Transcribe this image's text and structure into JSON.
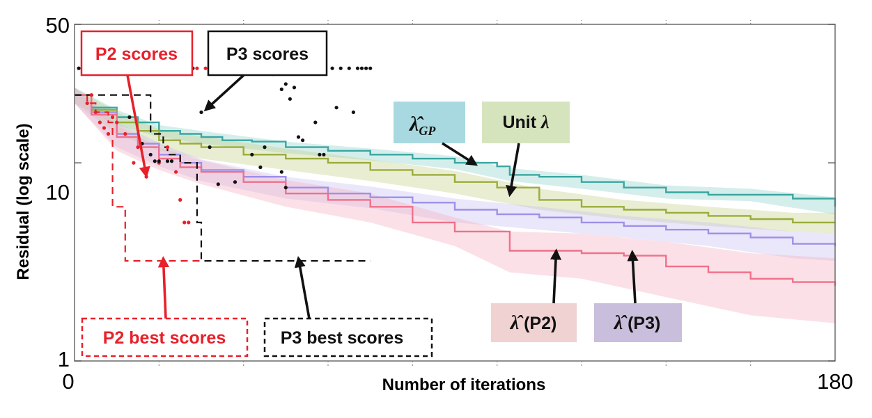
{
  "chart_data": {
    "type": "line",
    "ylabel": "Residual (log scale)",
    "xlabel": "Number of iterations",
    "xlim": [
      0,
      180
    ],
    "ylim": [
      1,
      50
    ],
    "yscale": "log",
    "x_tick_labels": [
      "0",
      "180"
    ],
    "y_tick_labels": [
      "50",
      "10",
      "1"
    ],
    "y_tick_values": [
      50,
      10,
      1
    ],
    "grid": false,
    "series": [
      {
        "name": "λ̂_GP",
        "color": "#3aa6a0",
        "band_color": "#8fd3cd",
        "points": [
          [
            0,
            22
          ],
          [
            4,
            19
          ],
          [
            10,
            17
          ],
          [
            15,
            16
          ],
          [
            20,
            14.5
          ],
          [
            25,
            14
          ],
          [
            30,
            13.5
          ],
          [
            35,
            13
          ],
          [
            42,
            12.8
          ],
          [
            50,
            12
          ],
          [
            60,
            11.5
          ],
          [
            70,
            11
          ],
          [
            80,
            10.5
          ],
          [
            90,
            10
          ],
          [
            100,
            9.6
          ],
          [
            103,
            8.7
          ],
          [
            110,
            8.5
          ],
          [
            120,
            8
          ],
          [
            130,
            7.5
          ],
          [
            140,
            7.1
          ],
          [
            150,
            6.9
          ],
          [
            160,
            6.9
          ],
          [
            170,
            6.6
          ],
          [
            180,
            6
          ]
        ],
        "band": [
          [
            0,
            20,
            24
          ],
          [
            10,
            15.5,
            18.5
          ],
          [
            20,
            13.5,
            15.5
          ],
          [
            30,
            12.5,
            14.5
          ],
          [
            50,
            11.2,
            12.8
          ],
          [
            70,
            10.3,
            11.8
          ],
          [
            90,
            9.3,
            10.8
          ],
          [
            103,
            8.1,
            9.4
          ],
          [
            120,
            7.4,
            8.7
          ],
          [
            140,
            6.6,
            7.7
          ],
          [
            160,
            6.4,
            7.4
          ],
          [
            180,
            5.5,
            6.7
          ]
        ]
      },
      {
        "name": "Unit λ",
        "color": "#9aac3a",
        "band_color": "#c5d08a",
        "points": [
          [
            0,
            22
          ],
          [
            4,
            18.5
          ],
          [
            10,
            16
          ],
          [
            15,
            14.5
          ],
          [
            20,
            13
          ],
          [
            25,
            12.5
          ],
          [
            30,
            12
          ],
          [
            40,
            11
          ],
          [
            50,
            10.5
          ],
          [
            60,
            10
          ],
          [
            70,
            9.2
          ],
          [
            80,
            8.7
          ],
          [
            90,
            8
          ],
          [
            100,
            7.5
          ],
          [
            110,
            6.5
          ],
          [
            120,
            6
          ],
          [
            130,
            5.8
          ],
          [
            140,
            5.6
          ],
          [
            150,
            5.4
          ],
          [
            160,
            5.2
          ],
          [
            170,
            5
          ],
          [
            180,
            5
          ]
        ],
        "band": [
          [
            0,
            20,
            24
          ],
          [
            10,
            14,
            18
          ],
          [
            20,
            11.5,
            14.8
          ],
          [
            30,
            10.5,
            13.6
          ],
          [
            50,
            9.2,
            11.8
          ],
          [
            70,
            8.1,
            10.4
          ],
          [
            90,
            7,
            9.1
          ],
          [
            110,
            5.8,
            7.4
          ],
          [
            130,
            5.2,
            6.5
          ],
          [
            150,
            4.8,
            6
          ],
          [
            170,
            4.5,
            5.6
          ],
          [
            180,
            4.4,
            5.6
          ]
        ]
      },
      {
        "name": "λ̂ (P3)",
        "color": "#9f8fe8",
        "band_color": "#c9bff2",
        "points": [
          [
            0,
            22
          ],
          [
            4,
            18
          ],
          [
            10,
            14
          ],
          [
            15,
            12.5
          ],
          [
            20,
            11
          ],
          [
            25,
            10
          ],
          [
            30,
            9.2
          ],
          [
            40,
            8.5
          ],
          [
            50,
            7.5
          ],
          [
            60,
            7
          ],
          [
            70,
            6.7
          ],
          [
            80,
            6.3
          ],
          [
            90,
            5.8
          ],
          [
            100,
            5.5
          ],
          [
            110,
            5.3
          ],
          [
            120,
            5
          ],
          [
            130,
            4.8
          ],
          [
            140,
            4.6
          ],
          [
            150,
            4.4
          ],
          [
            160,
            4.2
          ],
          [
            170,
            3.9
          ],
          [
            180,
            3.8
          ]
        ],
        "band": [
          [
            0,
            20,
            24
          ],
          [
            10,
            12,
            16
          ],
          [
            20,
            9.6,
            12.6
          ],
          [
            30,
            8.1,
            10.4
          ],
          [
            50,
            6.6,
            8.5
          ],
          [
            70,
            5.9,
            7.6
          ],
          [
            90,
            5,
            6.6
          ],
          [
            110,
            4.6,
            6
          ],
          [
            130,
            4.2,
            5.4
          ],
          [
            150,
            3.8,
            5
          ],
          [
            170,
            3.3,
            4.5
          ],
          [
            180,
            3.2,
            4.4
          ]
        ]
      },
      {
        "name": "λ̂ (P2)",
        "color": "#f0708a",
        "band_color": "#f5b0bf",
        "points": [
          [
            0,
            22
          ],
          [
            4,
            17.5
          ],
          [
            10,
            13.5
          ],
          [
            15,
            12
          ],
          [
            20,
            10.5
          ],
          [
            25,
            9.5
          ],
          [
            30,
            9
          ],
          [
            40,
            8
          ],
          [
            50,
            7
          ],
          [
            60,
            6.5
          ],
          [
            70,
            6
          ],
          [
            80,
            5
          ],
          [
            90,
            4.5
          ],
          [
            100,
            4.5
          ],
          [
            103,
            3.6
          ],
          [
            110,
            3.6
          ],
          [
            120,
            3.5
          ],
          [
            130,
            3.4
          ],
          [
            140,
            3
          ],
          [
            150,
            2.8
          ],
          [
            160,
            2.6
          ],
          [
            170,
            2.5
          ],
          [
            180,
            2.4
          ]
        ],
        "band": [
          [
            0,
            20,
            24
          ],
          [
            10,
            11.5,
            15.5
          ],
          [
            20,
            9.2,
            12
          ],
          [
            30,
            7.8,
            10.3
          ],
          [
            50,
            6,
            8.2
          ],
          [
            70,
            5,
            7
          ],
          [
            90,
            3.8,
            5.3
          ],
          [
            103,
            2.8,
            4.5
          ],
          [
            120,
            2.6,
            4.4
          ],
          [
            140,
            2.1,
            4
          ],
          [
            160,
            1.7,
            3.5
          ],
          [
            180,
            1.55,
            3.3
          ]
        ]
      }
    ],
    "scatter": [
      {
        "name": "P2 scores",
        "color": "#e8202a",
        "points": [
          [
            1,
            30
          ],
          [
            2,
            30
          ],
          [
            3,
            30
          ],
          [
            4,
            30
          ],
          [
            5,
            30
          ],
          [
            6,
            30
          ],
          [
            7,
            30
          ],
          [
            8,
            30
          ],
          [
            3,
            20
          ],
          [
            4,
            22
          ],
          [
            5,
            18
          ],
          [
            6,
            16
          ],
          [
            7,
            15
          ],
          [
            8,
            14
          ],
          [
            9,
            17
          ],
          [
            10,
            16
          ],
          [
            12,
            14
          ],
          [
            14,
            10
          ],
          [
            15,
            12
          ],
          [
            17,
            8.5
          ],
          [
            20,
            10
          ],
          [
            22,
            12
          ],
          [
            24,
            9
          ],
          [
            25,
            6.5
          ],
          [
            26,
            5
          ],
          [
            27,
            5
          ],
          [
            23,
            30
          ],
          [
            27,
            30
          ],
          [
            29,
            30
          ],
          [
            31,
            30
          ]
        ]
      },
      {
        "name": "P3 scores",
        "color": "#111111",
        "points": [
          [
            1,
            30
          ],
          [
            2,
            30
          ],
          [
            3,
            30
          ],
          [
            4,
            30
          ],
          [
            5,
            30
          ],
          [
            6,
            30
          ],
          [
            7,
            30
          ],
          [
            8,
            30
          ],
          [
            9,
            30
          ],
          [
            10,
            30
          ],
          [
            11,
            30
          ],
          [
            12,
            30
          ],
          [
            13,
            30
          ],
          [
            14,
            30
          ],
          [
            15,
            30
          ],
          [
            16,
            30
          ],
          [
            17,
            30
          ],
          [
            18,
            30
          ],
          [
            19,
            30
          ],
          [
            20,
            30
          ],
          [
            21,
            30
          ],
          [
            22,
            30
          ],
          [
            24,
            30
          ],
          [
            25,
            30
          ],
          [
            26,
            30
          ],
          [
            28,
            30
          ],
          [
            33,
            30
          ],
          [
            36,
            30
          ],
          [
            39,
            30
          ],
          [
            43,
            30
          ],
          [
            45,
            30
          ],
          [
            48,
            30
          ],
          [
            51,
            30
          ],
          [
            54,
            30
          ],
          [
            56,
            30
          ],
          [
            59,
            30
          ],
          [
            61,
            30
          ],
          [
            63,
            30
          ],
          [
            65,
            30
          ],
          [
            67,
            30
          ],
          [
            68,
            30
          ],
          [
            69,
            30
          ],
          [
            70,
            30
          ],
          [
            13,
            17
          ],
          [
            16,
            12.5
          ],
          [
            18,
            11
          ],
          [
            19,
            10.2
          ],
          [
            20,
            10.2
          ],
          [
            22,
            10.2
          ],
          [
            23,
            10.2
          ],
          [
            30,
            18
          ],
          [
            32,
            12
          ],
          [
            34,
            7.8
          ],
          [
            38,
            8
          ],
          [
            42,
            11
          ],
          [
            44,
            9.5
          ],
          [
            45,
            12
          ],
          [
            49,
            9
          ],
          [
            50,
            7.5
          ],
          [
            53,
            13.5
          ],
          [
            54,
            13
          ],
          [
            57,
            16
          ],
          [
            58,
            11
          ],
          [
            59,
            11
          ],
          [
            62,
            19
          ],
          [
            66,
            18
          ],
          [
            47,
            28
          ],
          [
            49,
            23.5
          ],
          [
            50,
            25
          ],
          [
            51,
            21
          ],
          [
            52,
            24
          ]
        ]
      }
    ],
    "best_lines": [
      {
        "name": "P2 best scores",
        "color": "#e8202a",
        "points": [
          [
            0,
            22
          ],
          [
            2,
            22
          ],
          [
            3,
            20
          ],
          [
            5,
            18
          ],
          [
            8,
            16
          ],
          [
            9,
            6
          ],
          [
            11,
            6
          ],
          [
            12,
            3.2
          ],
          [
            30,
            3.2
          ]
        ]
      },
      {
        "name": "P3 best scores",
        "color": "#111111",
        "points": [
          [
            0,
            22
          ],
          [
            17,
            22
          ],
          [
            18,
            14
          ],
          [
            20,
            14
          ],
          [
            21,
            12
          ],
          [
            22,
            11
          ],
          [
            24,
            11
          ],
          [
            25,
            10
          ],
          [
            28,
            10
          ],
          [
            29,
            5
          ],
          [
            30,
            3.2
          ],
          [
            70,
            3.2
          ]
        ]
      }
    ]
  },
  "callouts": [
    {
      "key": "p2_scores",
      "label": "P2 scores",
      "text_color": "#e8202a",
      "border_color": "#e8202a",
      "fill": "#ffffff",
      "border_style": "solid",
      "arrow_color": "#e8202a",
      "arrow_target": [
        17,
        8.6
      ]
    },
    {
      "key": "p3_scores",
      "label": "P3 scores",
      "text_color": "#111111",
      "border_color": "#111111",
      "fill": "#ffffff",
      "border_style": "solid",
      "arrow_color": "#111111",
      "arrow_target": [
        31,
        18.5
      ]
    },
    {
      "key": "lambda_gp",
      "label": "λ̂",
      "subscript": "GP",
      "text_color": "#111111",
      "border_color": "none",
      "fill": "#a9d9e0",
      "border_style": "none",
      "arrow_color": "#111111",
      "arrow_target": [
        95,
        9.8
      ]
    },
    {
      "key": "unit_lambda",
      "label": "Unit ",
      "math": "λ",
      "text_color": "#111111",
      "border_color": "none",
      "fill": "#d6e4bd",
      "border_style": "none",
      "arrow_color": "#111111",
      "arrow_target": [
        103,
        6.9
      ]
    },
    {
      "key": "lambda_p2",
      "label": "λ̂",
      "suffix": " (P2)",
      "text_color": "#111111",
      "border_color": "none",
      "fill": "#f0d2d2",
      "border_style": "none",
      "arrow_color": "#111111",
      "arrow_target": [
        114,
        3.6
      ]
    },
    {
      "key": "lambda_p3",
      "label": "λ̂",
      "suffix": " (P3)",
      "text_color": "#111111",
      "border_color": "none",
      "fill": "#c9bedb",
      "border_style": "none",
      "arrow_color": "#111111",
      "arrow_target": [
        132,
        3.55
      ]
    },
    {
      "key": "p2_best",
      "label": "P2 best scores",
      "text_color": "#e8202a",
      "border_color": "#e8202a",
      "fill": "#ffffff",
      "border_style": "dashed",
      "arrow_color": "#e8202a",
      "arrow_target": [
        21,
        3.3
      ]
    },
    {
      "key": "p3_best",
      "label": "P3 best scores",
      "text_color": "#111111",
      "border_color": "#111111",
      "fill": "#ffffff",
      "border_style": "dashed",
      "arrow_color": "#111111",
      "arrow_target": [
        53,
        3.3
      ]
    }
  ]
}
